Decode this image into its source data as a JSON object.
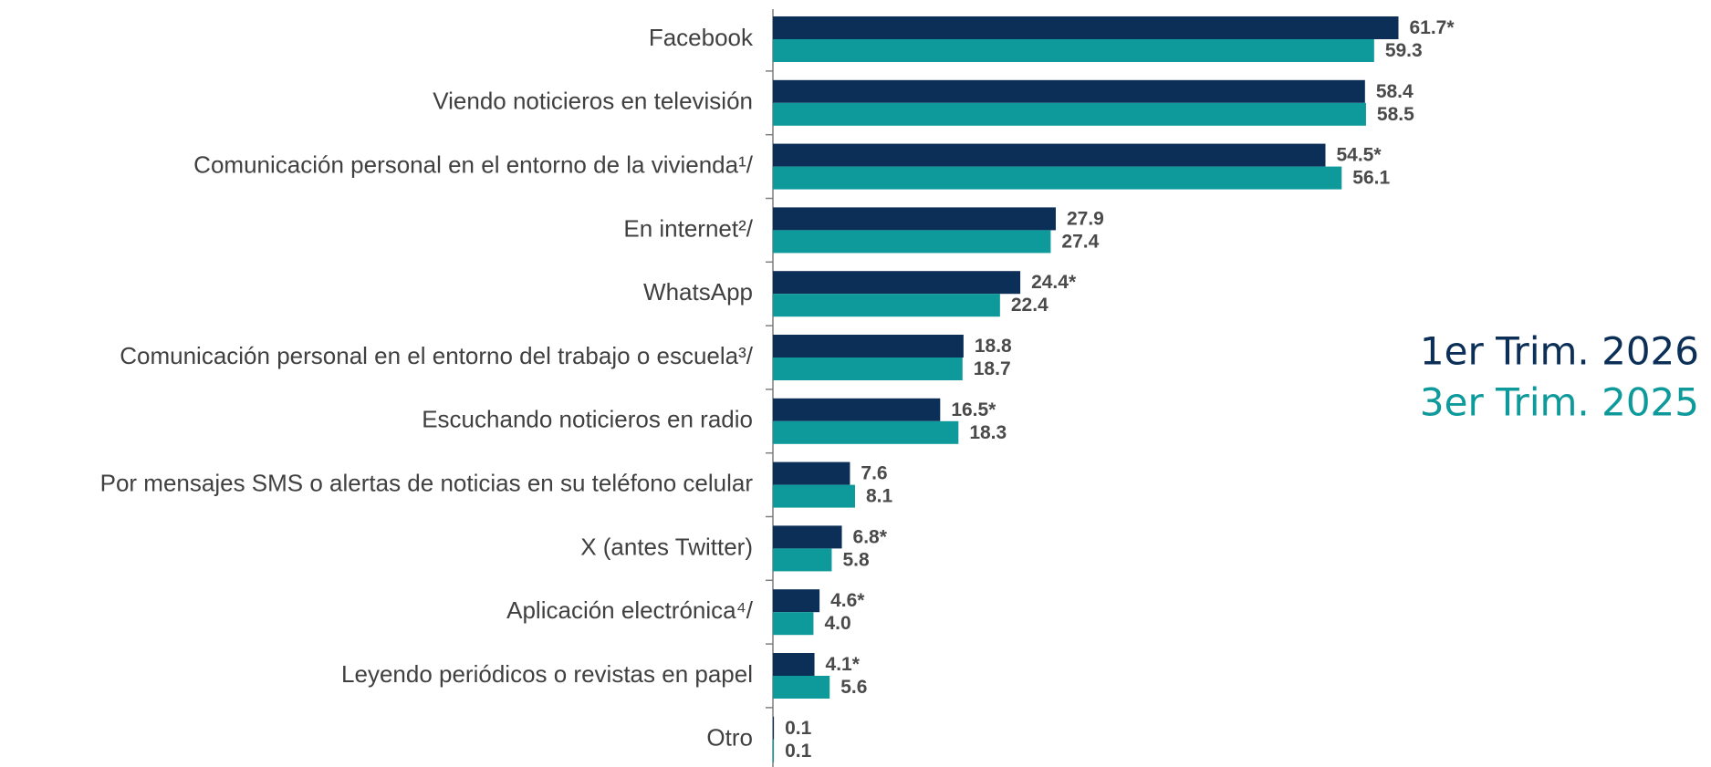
{
  "chart_data": {
    "type": "bar",
    "orientation": "horizontal",
    "categories": [
      "Facebook",
      "Viendo noticieros en televisión",
      "Comunicación personal en el entorno de la vivienda¹/",
      "En internet²/",
      "WhatsApp",
      "Comunicación personal en el entorno del trabajo o escuela³/",
      "Escuchando noticieros en radio",
      "Por mensajes SMS o alertas de noticias en su teléfono celular",
      "X (antes Twitter)",
      "Aplicación electrónica⁴/",
      "Leyendo periódicos o revistas en papel",
      "Otro"
    ],
    "series": [
      {
        "name": "1er Trim. 2026",
        "color": "#0b2f57",
        "values": [
          61.7,
          58.4,
          54.5,
          27.9,
          24.4,
          18.8,
          16.5,
          7.6,
          6.8,
          4.6,
          4.1,
          0.1
        ],
        "value_labels": [
          "61.7*",
          "58.4",
          "54.5*",
          "27.9",
          "24.4*",
          "18.8",
          "16.5*",
          "7.6",
          "6.8*",
          "4.6*",
          "4.1*",
          "0.1"
        ]
      },
      {
        "name": "3er Trim. 2025",
        "color": "#0e9a9b",
        "values": [
          59.3,
          58.5,
          56.1,
          27.4,
          22.4,
          18.7,
          18.3,
          8.1,
          5.8,
          4.0,
          5.6,
          0.1
        ],
        "value_labels": [
          "59.3",
          "58.5",
          "56.1",
          "27.4",
          "22.4",
          "18.7",
          "18.3",
          "8.1",
          "5.8",
          "4.0",
          "5.6",
          "0.1"
        ]
      }
    ]
  }
}
